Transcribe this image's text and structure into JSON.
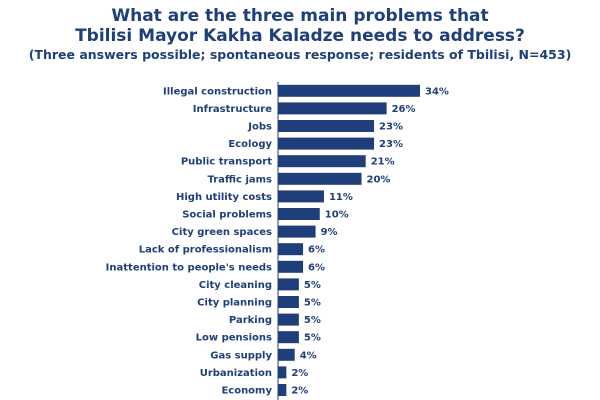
{
  "title_line1": "What are the three main problems that",
  "title_line2": "Tbilisi Mayor Kakha Kaladze needs to address?",
  "subtitle": "(Three answers possible; spontaneous response; residents of Tbilisi, N=453)",
  "chart_data": {
    "type": "bar",
    "orientation": "horizontal",
    "categories": [
      "Illegal construction",
      "Infrastructure",
      "Jobs",
      "Ecology",
      "Public transport",
      "Traffic jams",
      "High utility costs",
      "Social problems",
      "City green spaces",
      "Lack of professionalism",
      "Inattention to people's needs",
      "City cleaning",
      "City planning",
      "Parking",
      "Low pensions",
      "Gas supply",
      "Urbanization",
      "Economy"
    ],
    "values": [
      34,
      26,
      23,
      23,
      21,
      20,
      11,
      10,
      9,
      6,
      6,
      5,
      5,
      5,
      5,
      4,
      2,
      2
    ],
    "value_labels": [
      "34%",
      "26%",
      "23%",
      "23%",
      "21%",
      "20%",
      "11%",
      "10%",
      "9%",
      "6%",
      "6%",
      "5%",
      "5%",
      "5%",
      "5%",
      "4%",
      "2%",
      "2%"
    ],
    "xlim": [
      0,
      34
    ],
    "bar_color": "#1f3f7a",
    "grid": false,
    "legend": "none"
  }
}
